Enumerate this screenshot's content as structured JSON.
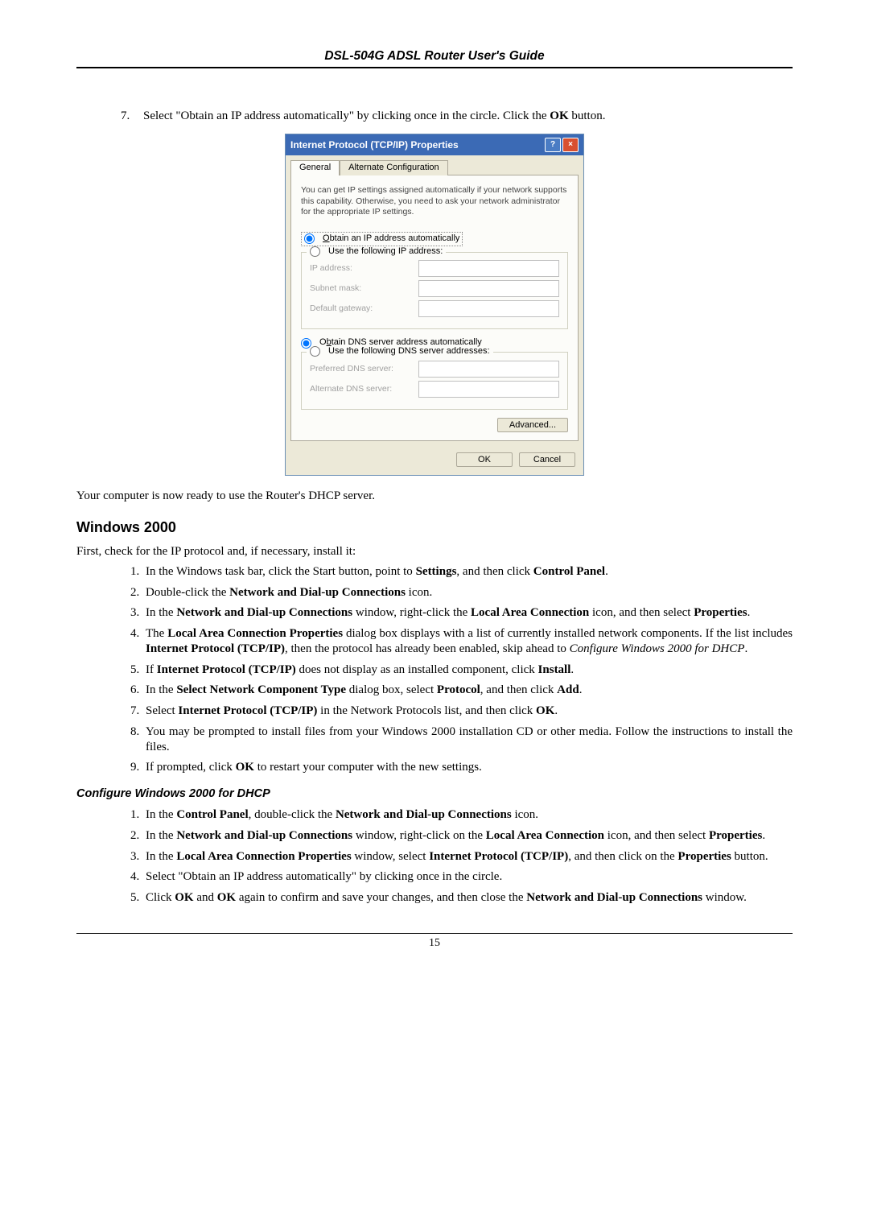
{
  "header": "DSL-504G ADSL Router User's Guide",
  "step7": {
    "num": "7.",
    "text_before": "Select \"Obtain an IP address automatically\" by clicking once in the circle. Click the ",
    "ok_bold": "OK",
    "text_after": " button."
  },
  "dialog": {
    "title": "Internet Protocol (TCP/IP) Properties",
    "tab_general": "General",
    "tab_alt": "Alternate Configuration",
    "desc": "You can get IP settings assigned automatically if your network supports this capability. Otherwise, you need to ask your network administrator for the appropriate IP settings.",
    "r_obtain_ip": "Obtain an IP address automatically",
    "r_use_ip": "Use the following IP address:",
    "lbl_ip": "IP address:",
    "lbl_subnet": "Subnet mask:",
    "lbl_gateway": "Default gateway:",
    "r_obtain_dns": "Obtain DNS server address automatically",
    "r_use_dns": "Use the following DNS server addresses:",
    "lbl_pref_dns": "Preferred DNS server:",
    "lbl_alt_dns": "Alternate DNS server:",
    "btn_adv": "Advanced...",
    "btn_ok": "OK",
    "btn_cancel": "Cancel"
  },
  "ready_text": "Your computer is now ready to use the Router's DHCP server.",
  "win2000_heading": "Windows 2000",
  "win2000_intro": "First, check for the IP protocol and, if necessary, install it:",
  "steps_a": [
    {
      "pre": "In the Windows task bar, click the Start button, point to ",
      "b1": "Settings",
      "mid": ", and then click ",
      "b2": "Control Panel",
      "post": "."
    },
    {
      "pre": "Double-click the ",
      "b1": "Network and Dial-up Connections",
      "post": " icon."
    },
    {
      "pre": "In the ",
      "b1": "Network and Dial-up Connections",
      "mid": " window, right-click the ",
      "b2": "Local Area Connection",
      "post": " icon, and then select ",
      "b3": "Properties",
      "post2": "."
    },
    {
      "pre": "The ",
      "b1": "Local Area Connection Properties",
      "mid": " dialog box displays with a list of currently installed network components. If the list includes ",
      "b2": "Internet Protocol (TCP/IP)",
      "post": ", then the protocol has already been enabled, skip ahead to ",
      "i1": "Configure Windows 2000 for DHCP",
      "post2": "."
    },
    {
      "pre": "If ",
      "b1": "Internet Protocol (TCP/IP)",
      "mid": " does not display as an installed component, click ",
      "b2": "Install",
      "post": "."
    },
    {
      "pre": "In the ",
      "b1": "Select Network Component Type",
      "mid": " dialog box, select ",
      "b2": "Protocol",
      "post": ", and then click ",
      "b3": "Add",
      "post2": "."
    },
    {
      "pre": "Select ",
      "b1": "Internet Protocol (TCP/IP)",
      "mid": " in the Network Protocols list, and then click ",
      "b2": "OK",
      "post": "."
    },
    {
      "pre": "You may be prompted to install files from your Windows 2000 installation CD or other media. Follow the instructions to install the files."
    },
    {
      "pre": "If prompted, click ",
      "b1": "OK",
      "post": " to restart your computer with the new settings."
    }
  ],
  "configure_heading": "Configure Windows 2000 for DHCP",
  "steps_b": [
    {
      "pre": "In the ",
      "b1": "Control Panel",
      "mid": ", double-click the ",
      "b2": "Network and Dial-up Connections",
      "post": " icon."
    },
    {
      "pre": "In the ",
      "b1": "Network and Dial-up Connections",
      "mid": " window, right-click on the ",
      "b2": "Local Area Connection",
      "post": " icon, and then select ",
      "b3": "Properties",
      "post2": "."
    },
    {
      "pre": "In the ",
      "b1": "Local Area Connection Properties",
      "mid": " window, select ",
      "b2": "Internet Protocol (TCP/IP)",
      "post": ", and then click on the ",
      "b3": "Properties",
      "post2": " button."
    },
    {
      "pre": "Select \"Obtain an IP address automatically\" by clicking once in the circle."
    },
    {
      "pre": "Click ",
      "b1": "OK",
      "mid": " and ",
      "b2": "OK",
      "post": " again to confirm and save your changes, and then close the ",
      "b3": "Network and Dial-up Connections",
      "post2": " window."
    }
  ],
  "page_num": "15"
}
